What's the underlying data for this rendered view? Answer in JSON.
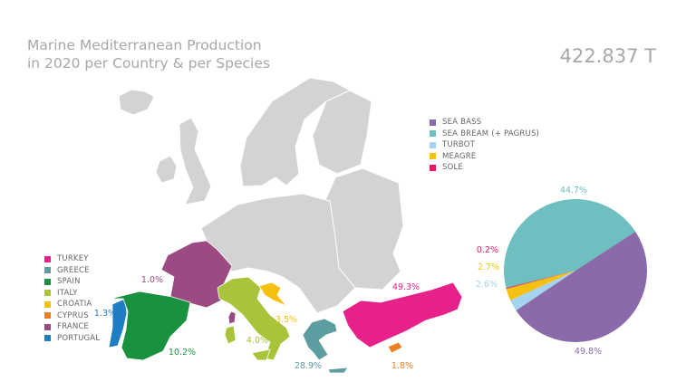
{
  "title_line1": "Marine Mediterranean Production",
  "title_line2": "in 2020 per Country & per Species",
  "total": "422.837 T",
  "chart_data": [
    {
      "type": "pie",
      "title": "",
      "categories": [
        "SEA BREAM (+ PAGRUS)",
        "SEA BASS",
        "TURBOT",
        "MEAGRE",
        "SOLE"
      ],
      "values": [
        44.7,
        49.8,
        2.6,
        2.7,
        0.2
      ],
      "labels": [
        "44.7%",
        "49.8%",
        "2.6%",
        "2.7%",
        "0.2%"
      ],
      "colors": [
        "#6ebfbf",
        "#8a6aa8",
        "#a6d4ee",
        "#f5c010",
        "#e8195f"
      ],
      "legend_order": [
        "SEA BASS",
        "SEA BREAM (+ PAGRUS)",
        "TURBOT",
        "MEAGRE",
        "SOLE"
      ],
      "legend_position": "top-left"
    },
    {
      "type": "map",
      "title": "",
      "categories": [
        "TURKEY",
        "GREECE",
        "SPAIN",
        "ITALY",
        "CROATIA",
        "CYPRUS",
        "FRANCE",
        "PORTUGAL"
      ],
      "values": [
        49.3,
        28.9,
        10.2,
        4.0,
        3.5,
        1.8,
        1.0,
        1.3
      ],
      "labels": [
        "49.3%",
        "28.9%",
        "10.2%",
        "4.0%",
        "3.5%",
        "1.8%",
        "1.0%",
        "1.3%"
      ],
      "colors": [
        "#e8208a",
        "#5c9ea0",
        "#18923e",
        "#a8c43a",
        "#f5c010",
        "#ef7d22",
        "#9b4a82",
        "#1f7ec2"
      ],
      "legend_position": "bottom-left"
    }
  ]
}
